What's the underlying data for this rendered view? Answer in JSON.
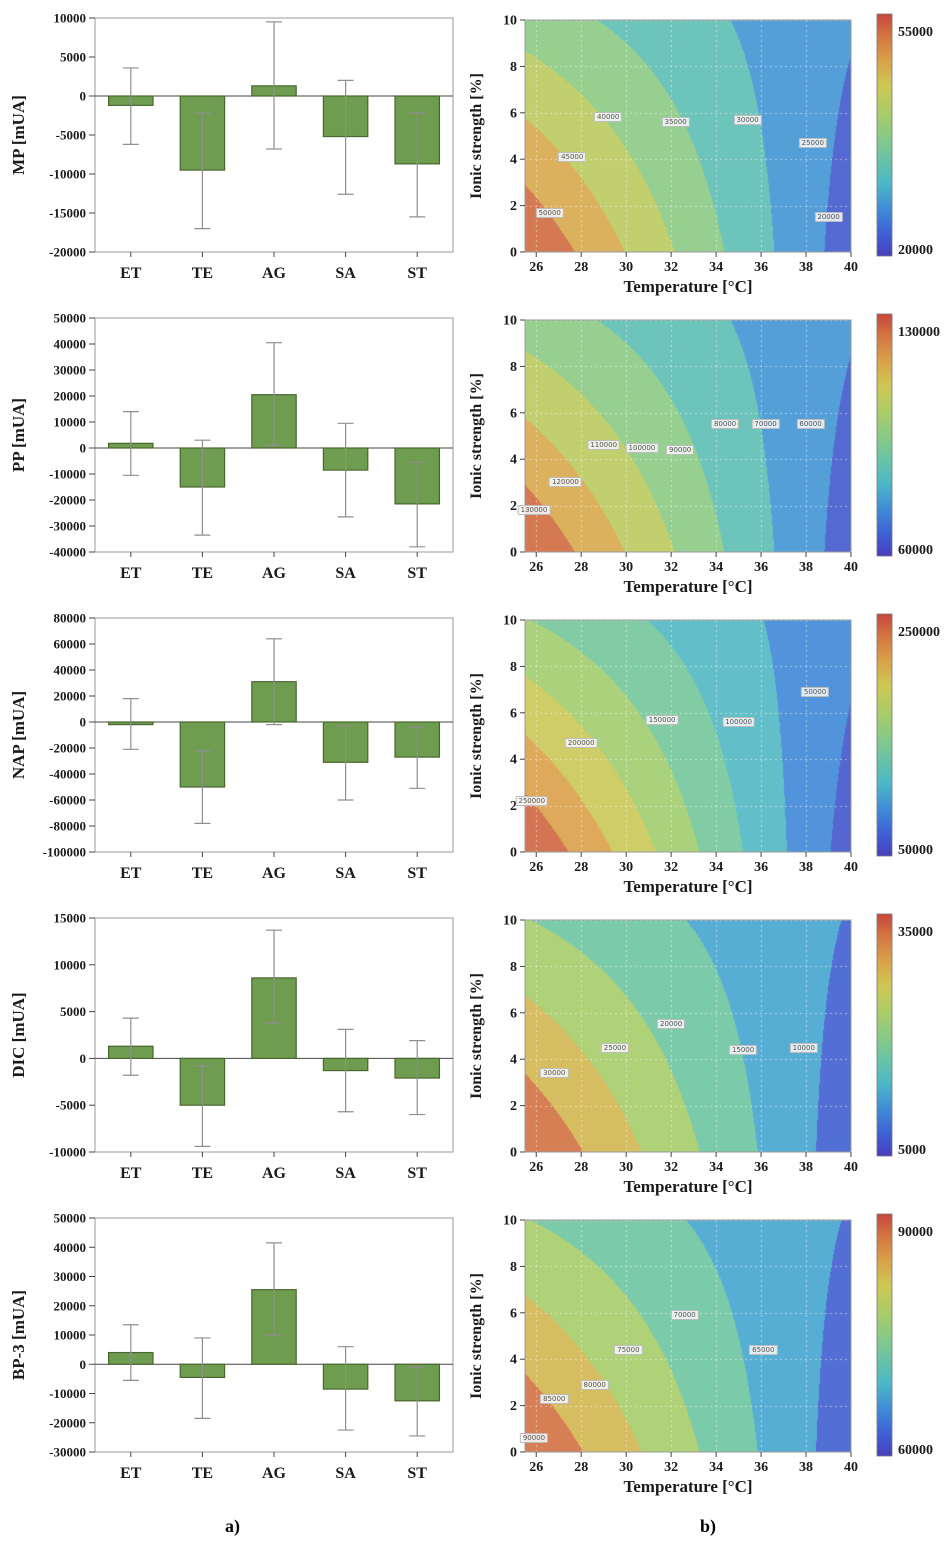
{
  "captions": {
    "a": "a)",
    "b": "b)"
  },
  "colors": {
    "bar_fill": "#6e9d4f",
    "bar_stroke": "#49662f",
    "error_bar": "#8f8f8f",
    "axis": "#444444",
    "frame": "#9a9a9a"
  },
  "chart_data": [
    {
      "id": "mp-bar",
      "type": "bar",
      "ylabel": "MP [mUA]",
      "categories": [
        "ET",
        "TE",
        "AG",
        "SA",
        "ST"
      ],
      "values": [
        -1200,
        -9500,
        1300,
        -5200,
        -8700
      ],
      "error_low": [
        -6200,
        -17000,
        -6800,
        -12600,
        -15500
      ],
      "error_high": [
        3600,
        -2200,
        9500,
        2000,
        -2200
      ],
      "ylim": [
        -20000,
        10000
      ],
      "yticks": [
        10000,
        5000,
        0,
        -5000,
        -10000,
        -15000,
        -20000
      ]
    },
    {
      "id": "mp-contour",
      "type": "heatmap",
      "xlabel": "Temperature [°C]",
      "ylabel": "Ionic strength [%]",
      "xlim": [
        25.5,
        40
      ],
      "xticks": [
        26,
        28,
        30,
        32,
        34,
        36,
        38,
        40
      ],
      "ylim": [
        0,
        10
      ],
      "yticks": [
        0,
        2,
        4,
        6,
        8,
        10
      ],
      "colorbar": {
        "min": 20000,
        "max": 55000,
        "top_label": "55000",
        "bottom_label": "20000"
      },
      "level_step": 5000,
      "contour_labels": [
        {
          "text": "40000",
          "T": 29.2,
          "I": 5.8
        },
        {
          "text": "35000",
          "T": 32.2,
          "I": 5.6
        },
        {
          "text": "30000",
          "T": 35.4,
          "I": 5.7
        },
        {
          "text": "25000",
          "T": 38.3,
          "I": 4.7
        },
        {
          "text": "45000",
          "T": 27.6,
          "I": 4.1
        },
        {
          "text": "50000",
          "T": 26.6,
          "I": 1.7
        },
        {
          "text": "20000",
          "T": 39.0,
          "I": 1.5
        }
      ]
    },
    {
      "id": "pp-bar",
      "type": "bar",
      "ylabel": "PP [mUA]",
      "categories": [
        "ET",
        "TE",
        "AG",
        "SA",
        "ST"
      ],
      "values": [
        1800,
        -15000,
        20500,
        -8500,
        -21500
      ],
      "error_low": [
        -10500,
        -33500,
        1000,
        -26500,
        -38000
      ],
      "error_high": [
        14000,
        3000,
        40500,
        9500,
        -5500
      ],
      "ylim": [
        -40000,
        50000
      ],
      "yticks": [
        50000,
        40000,
        30000,
        20000,
        10000,
        0,
        -10000,
        -20000,
        -30000,
        -40000
      ]
    },
    {
      "id": "pp-contour",
      "type": "heatmap",
      "xlabel": "Temperature [°C]",
      "ylabel": "Ionic strength [%]",
      "xlim": [
        25.5,
        40
      ],
      "xticks": [
        26,
        28,
        30,
        32,
        34,
        36,
        38,
        40
      ],
      "ylim": [
        0,
        10
      ],
      "yticks": [
        0,
        2,
        4,
        6,
        8,
        10
      ],
      "colorbar": {
        "min": 60000,
        "max": 130000,
        "top_label": "130000",
        "bottom_label": "60000"
      },
      "level_step": 10000,
      "contour_labels": [
        {
          "text": "110000",
          "T": 29.0,
          "I": 4.6
        },
        {
          "text": "100000",
          "T": 30.7,
          "I": 4.5
        },
        {
          "text": "90000",
          "T": 32.4,
          "I": 4.4
        },
        {
          "text": "80000",
          "T": 34.4,
          "I": 5.5
        },
        {
          "text": "70000",
          "T": 36.2,
          "I": 5.5
        },
        {
          "text": "60000",
          "T": 38.2,
          "I": 5.5
        },
        {
          "text": "120000",
          "T": 27.3,
          "I": 3.0
        },
        {
          "text": "130000",
          "T": 25.9,
          "I": 1.8
        }
      ]
    },
    {
      "id": "nap-bar",
      "type": "bar",
      "ylabel": "NAP [mUA]",
      "categories": [
        "ET",
        "TE",
        "AG",
        "SA",
        "ST"
      ],
      "values": [
        -2000,
        -50000,
        31000,
        -31000,
        -27000
      ],
      "error_low": [
        -21000,
        -78000,
        -2000,
        -60000,
        -51000
      ],
      "error_high": [
        18000,
        -22000,
        64000,
        -3000,
        -4000
      ],
      "ylim": [
        -100000,
        80000
      ],
      "yticks": [
        80000,
        60000,
        40000,
        20000,
        0,
        -20000,
        -40000,
        -60000,
        -80000,
        -100000
      ]
    },
    {
      "id": "nap-contour",
      "type": "heatmap",
      "xlabel": "Temperature [°C]",
      "ylabel": "Ionic strength [%]",
      "xlim": [
        25.5,
        40
      ],
      "xticks": [
        26,
        28,
        30,
        32,
        34,
        36,
        38,
        40
      ],
      "ylim": [
        0,
        10
      ],
      "yticks": [
        0,
        2,
        4,
        6,
        8,
        10
      ],
      "colorbar": {
        "min": 50000,
        "max": 250000,
        "top_label": "250000",
        "bottom_label": "50000"
      },
      "level_step": 25000,
      "contour_labels": [
        {
          "text": "50000",
          "T": 38.4,
          "I": 6.9
        },
        {
          "text": "150000",
          "T": 31.6,
          "I": 5.7
        },
        {
          "text": "100000",
          "T": 35.0,
          "I": 5.6
        },
        {
          "text": "200000",
          "T": 28.0,
          "I": 4.7
        },
        {
          "text": "250000",
          "T": 25.8,
          "I": 2.2
        }
      ]
    },
    {
      "id": "dic-bar",
      "type": "bar",
      "ylabel": "DIC [mUA]",
      "categories": [
        "ET",
        "TE",
        "AG",
        "SA",
        "ST"
      ],
      "values": [
        1300,
        -5000,
        8600,
        -1300,
        -2100
      ],
      "error_low": [
        -1800,
        -9400,
        3800,
        -5700,
        -6000
      ],
      "error_high": [
        4300,
        -800,
        13700,
        3100,
        1900
      ],
      "ylim": [
        -10000,
        15000
      ],
      "yticks": [
        15000,
        10000,
        5000,
        0,
        -5000,
        -10000
      ]
    },
    {
      "id": "dic-contour",
      "type": "heatmap",
      "xlabel": "Temperature [°C]",
      "ylabel": "Ionic strength [%]",
      "xlim": [
        25.5,
        40
      ],
      "xticks": [
        26,
        28,
        30,
        32,
        34,
        36,
        38,
        40
      ],
      "ylim": [
        0,
        10
      ],
      "yticks": [
        0,
        2,
        4,
        6,
        8,
        10
      ],
      "colorbar": {
        "min": 5000,
        "max": 35000,
        "top_label": "35000",
        "bottom_label": "5000"
      },
      "level_step": 5000,
      "contour_labels": [
        {
          "text": "20000",
          "T": 32.0,
          "I": 5.5
        },
        {
          "text": "25000",
          "T": 29.5,
          "I": 4.5
        },
        {
          "text": "15000",
          "T": 35.2,
          "I": 4.4
        },
        {
          "text": "10000",
          "T": 37.9,
          "I": 4.5
        },
        {
          "text": "30000",
          "T": 26.8,
          "I": 3.4
        }
      ]
    },
    {
      "id": "bp3-bar",
      "type": "bar",
      "ylabel": "BP-3 [mUA]",
      "categories": [
        "ET",
        "TE",
        "AG",
        "SA",
        "ST"
      ],
      "values": [
        4000,
        -4500,
        25500,
        -8500,
        -12500
      ],
      "error_low": [
        -5500,
        -18500,
        10000,
        -22500,
        -24500
      ],
      "error_high": [
        13500,
        9000,
        41500,
        6000,
        -1000
      ],
      "ylim": [
        -30000,
        50000
      ],
      "yticks": [
        50000,
        40000,
        30000,
        20000,
        10000,
        0,
        -10000,
        -20000,
        -30000
      ]
    },
    {
      "id": "bp3-contour",
      "type": "heatmap",
      "xlabel": "Temperature [°C]",
      "ylabel": "Ionic strength [%]",
      "xlim": [
        25.5,
        40
      ],
      "xticks": [
        26,
        28,
        30,
        32,
        34,
        36,
        38,
        40
      ],
      "ylim": [
        0,
        10
      ],
      "yticks": [
        0,
        2,
        4,
        6,
        8,
        10
      ],
      "colorbar": {
        "min": 60000,
        "max": 90000,
        "top_label": "90000",
        "bottom_label": "60000"
      },
      "level_step": 5000,
      "contour_labels": [
        {
          "text": "70000",
          "T": 32.6,
          "I": 5.9
        },
        {
          "text": "65000",
          "T": 36.1,
          "I": 4.4
        },
        {
          "text": "75000",
          "T": 30.1,
          "I": 4.4
        },
        {
          "text": "80000",
          "T": 28.6,
          "I": 2.9
        },
        {
          "text": "85000",
          "T": 26.8,
          "I": 2.3
        },
        {
          "text": "90000",
          "T": 25.9,
          "I": 0.6
        }
      ]
    }
  ]
}
